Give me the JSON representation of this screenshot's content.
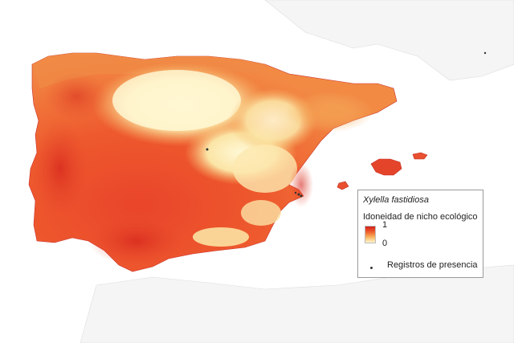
{
  "legend": {
    "title": "Xylella fastidiosa",
    "subtitle": "Idoneidad de nicho ecológico",
    "max_label": "1",
    "min_label": "0",
    "points_label": "Registros de presencia"
  },
  "colors": {
    "high": "#d21f1b",
    "mid_high": "#f0632e",
    "mid_low": "#f7b15c",
    "low": "#fff6cc",
    "neighbor_land": "#f4f4f4",
    "neighbor_border": "#d6d6d6",
    "presence_point": "#333333"
  }
}
